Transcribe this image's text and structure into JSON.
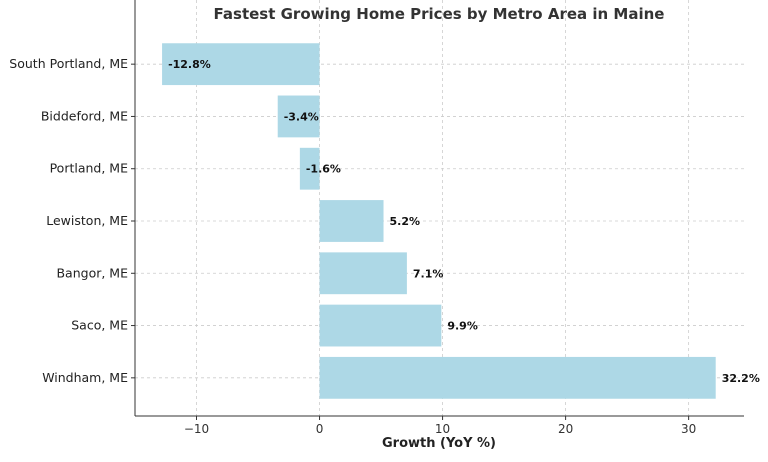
{
  "chart_data": {
    "type": "bar",
    "orientation": "horizontal",
    "title": "Fastest Growing Home Prices by Metro Area in Maine",
    "xlabel": "Growth (YoY %)",
    "ylabel": "",
    "categories": [
      "South Portland, ME",
      "Biddeford, ME",
      "Portland, ME",
      "Lewiston, ME",
      "Bangor, ME",
      "Saco, ME",
      "Windham, ME"
    ],
    "values": [
      -12.8,
      -3.4,
      -1.6,
      5.2,
      7.1,
      9.9,
      32.2
    ],
    "data_labels": [
      "-12.8%",
      "-3.4%",
      "-1.6%",
      "5.2%",
      "7.1%",
      "9.9%",
      "32.2%"
    ],
    "xlim": [
      -15,
      34.5
    ],
    "xticks": [
      -10,
      0,
      10,
      20,
      30
    ],
    "xtick_labels": [
      "−10",
      "0",
      "10",
      "20",
      "30"
    ],
    "grid": true,
    "bar_color": "#add8e6"
  }
}
